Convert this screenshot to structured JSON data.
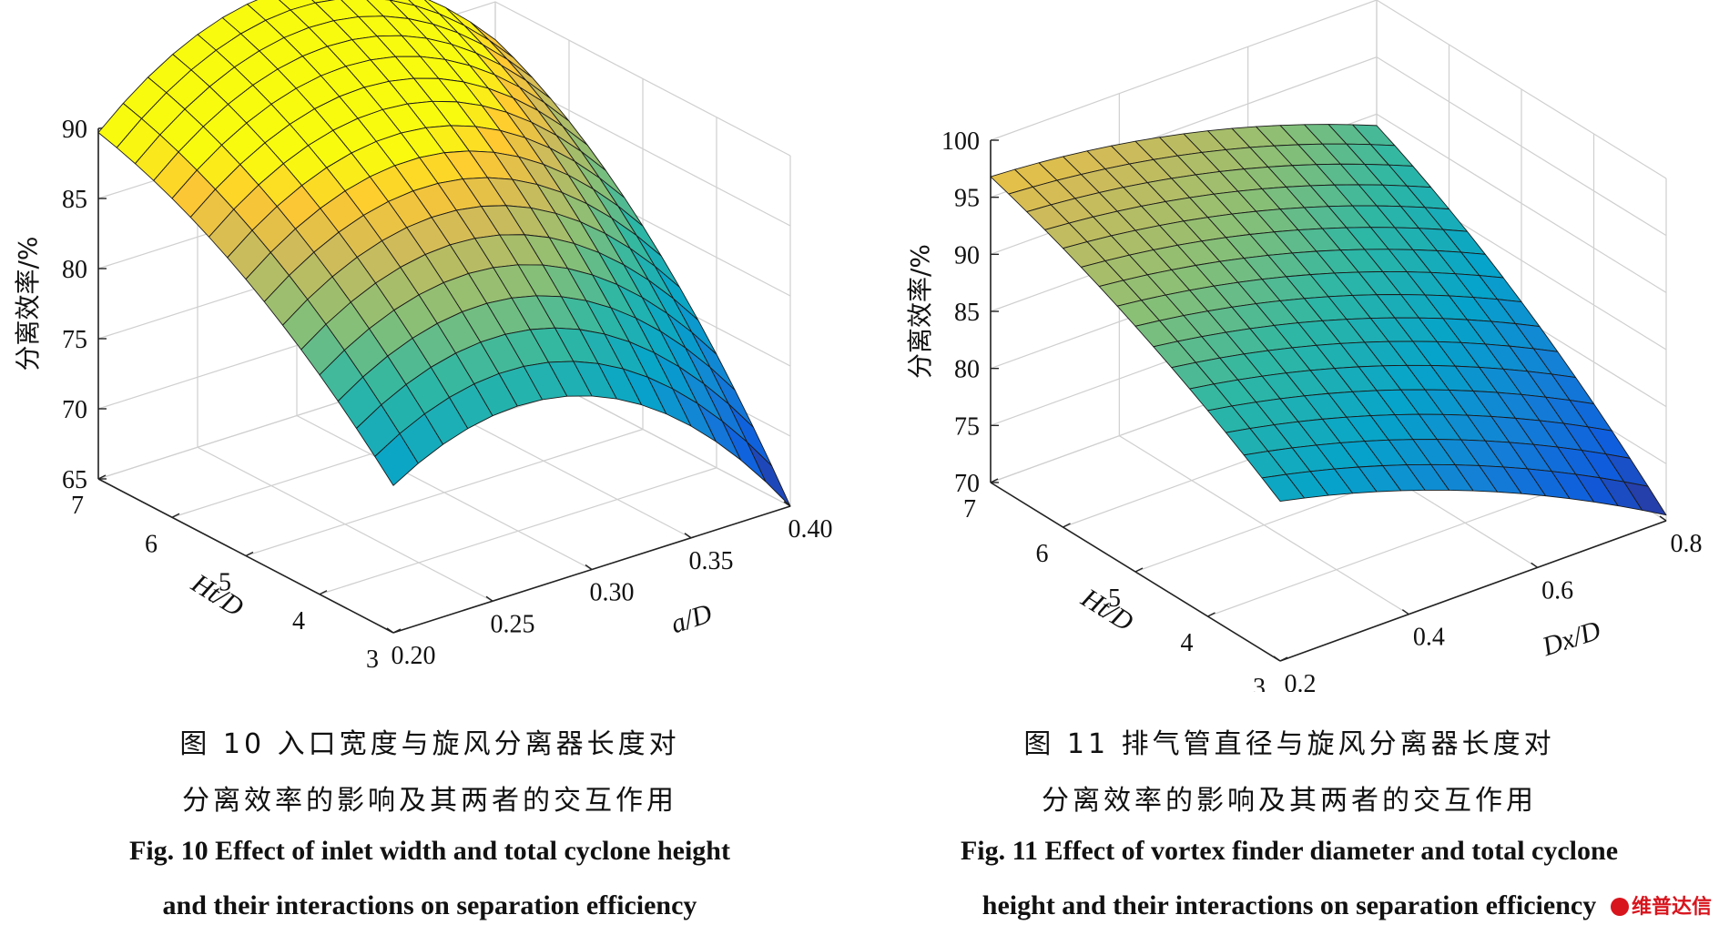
{
  "figures": [
    {
      "caption_cn_1": "图 10 入口宽度与旋风分离器长度对",
      "caption_cn_2": "分离效率的影响及其两者的交互作用",
      "caption_en_1": "Fig. 10 Effect of inlet width and total cyclone height",
      "caption_en_2": "and their interactions on separation efficiency"
    },
    {
      "caption_cn_1": "图 11 排气管直径与旋风分离器长度对",
      "caption_cn_2": "分离效率的影响及其两者的交互作用",
      "caption_en_1": "Fig. 11 Effect of vortex finder diameter and total cyclone",
      "caption_en_2": "height and their interactions on separation efficiency"
    }
  ],
  "chart_data": [
    {
      "type": "surface",
      "xlabel": "a/D",
      "ylabel": "Ht/D",
      "zlabel": "分离效率/%",
      "xlim": [
        0.2,
        0.4
      ],
      "ylim": [
        3,
        7
      ],
      "zlim": [
        65,
        90
      ],
      "xticks": [
        "0.20",
        "0.25",
        "0.30",
        "0.35",
        "0.40"
      ],
      "yticks": [
        "3",
        "4",
        "5",
        "6",
        "7"
      ],
      "zticks": [
        "65",
        "70",
        "75",
        "80",
        "85",
        "90"
      ],
      "grid": true,
      "colormap": "parula",
      "grid_points": 16,
      "corners": {
        "x0.20_y7": 89.7,
        "x0.20_y3": 75.5,
        "x0.40_y3": 65.0,
        "x0.40_y7": 87.3
      },
      "peak": {
        "x": 0.25,
        "y": 5,
        "z": 90.5
      }
    },
    {
      "type": "surface",
      "xlabel": "Dx/D",
      "ylabel": "Ht/D",
      "zlabel": "分离效率/%",
      "xlim": [
        0.2,
        0.8
      ],
      "ylim": [
        3,
        7
      ],
      "zlim": [
        70,
        100
      ],
      "xticks": [
        "0.2",
        "0.4",
        "0.6",
        "0.8"
      ],
      "yticks": [
        "3",
        "4",
        "5",
        "6",
        "7"
      ],
      "zticks": [
        "70",
        "75",
        "80",
        "85",
        "90",
        "95",
        "100"
      ],
      "grid": true,
      "colormap": "parula",
      "grid_points": 16,
      "corners": {
        "x0.2_y7": 96.8,
        "x0.2_y3": 84.0,
        "x0.8_y3": 70.5,
        "x0.8_y7": 89.0
      }
    }
  ],
  "watermark": "维普达信"
}
